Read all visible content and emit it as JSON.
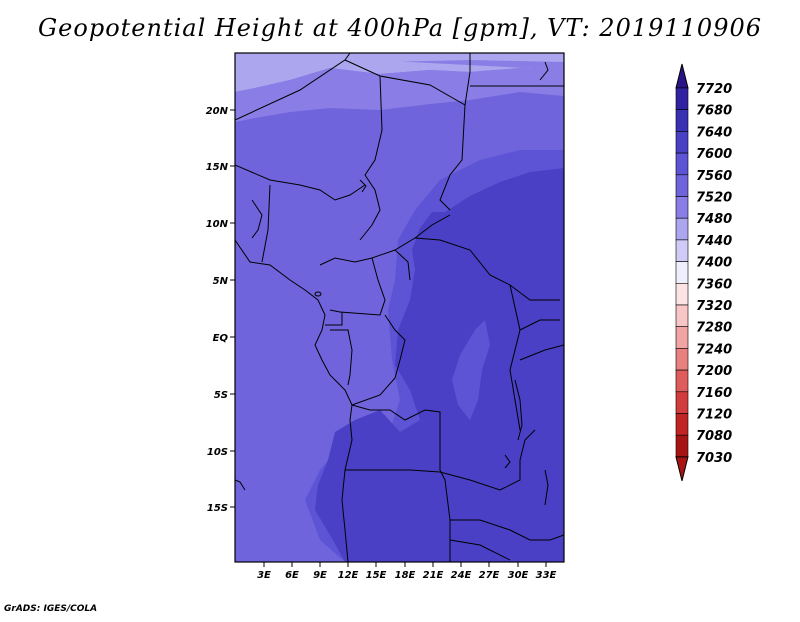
{
  "title": "Geopotential Height at 400hPa [gpm], VT: 2019110906",
  "credit": "GrADS: IGES/COLA",
  "lat_ticks": [
    "20N",
    "15N",
    "10N",
    "5N",
    "EQ",
    "5S",
    "10S",
    "15S"
  ],
  "lon_ticks": [
    "3E",
    "6E",
    "9E",
    "12E",
    "15E",
    "18E",
    "21E",
    "24E",
    "27E",
    "30E",
    "33E"
  ],
  "colorbar": {
    "labels": [
      "7720",
      "7680",
      "7640",
      "7600",
      "7560",
      "7520",
      "7480",
      "7440",
      "7400",
      "7360",
      "7320",
      "7280",
      "7240",
      "7200",
      "7160",
      "7120",
      "7080",
      "7030"
    ],
    "colors": [
      "#2a1488",
      "#3022a0",
      "#3a30b4",
      "#4a40c6",
      "#5c54d4",
      "#7064dc",
      "#8a7ee6",
      "#aca6ef",
      "#cfcbf6",
      "#eeeefc",
      "#fde4e4",
      "#f8c6c6",
      "#f0a4a4",
      "#e88080",
      "#de5c5c",
      "#d23c3c",
      "#c22424",
      "#a81414"
    ],
    "top_arrow_color": "#2a1488",
    "bottom_arrow_color": "#a81414"
  },
  "field_colors": {
    "c7520": "#7064dc",
    "c7560": "#5c54d4",
    "c7600": "#4a40c6",
    "c7640": "#3a30b4",
    "c7480": "#8a7ee6",
    "c7440": "#aca6ef"
  }
}
